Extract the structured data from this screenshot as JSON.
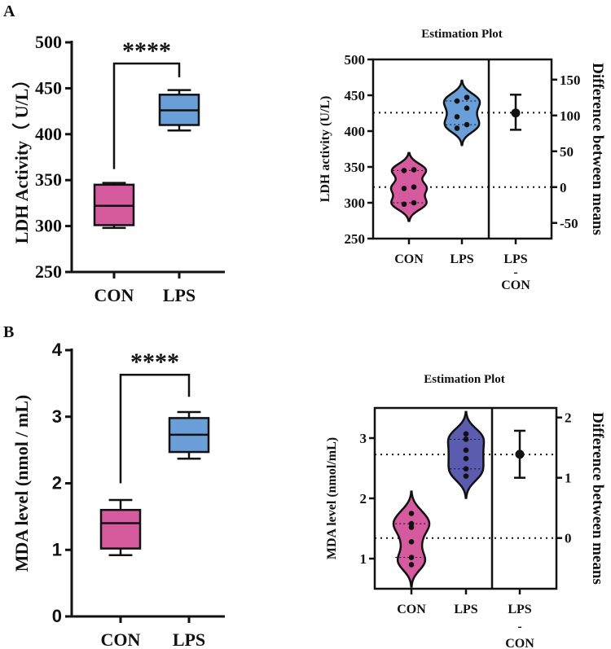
{
  "panels": [
    {
      "label": "A"
    },
    {
      "label": "B"
    }
  ],
  "chart_data": [
    {
      "type": "box",
      "panel": "A",
      "title": "",
      "ylabel": "LDH Activity（ U/L）",
      "ylim": [
        250,
        500
      ],
      "yticks": [
        "250",
        "300",
        "350",
        "400",
        "450",
        "500"
      ],
      "categories": [
        "CON",
        "LPS"
      ],
      "boxes": [
        {
          "name": "CON",
          "min": 298,
          "q1": 301,
          "median": 322,
          "q3": 345,
          "max": 347,
          "color": "#d65a9e"
        },
        {
          "name": "LPS",
          "min": 404,
          "q1": 410,
          "median": 426,
          "q3": 443,
          "max": 448,
          "color": "#6a9ed8"
        }
      ],
      "significance": {
        "label": "****",
        "bracket_top": 477,
        "left_end": 362,
        "right_end": 462
      }
    },
    {
      "type": "estimation",
      "panel": "A",
      "title": "Estimation Plot",
      "ylabel": "LDH activity (U/L)",
      "ylabel_right": "Difference between means",
      "ylim": [
        250,
        500
      ],
      "yticks": [
        "250",
        "300",
        "350",
        "400",
        "450",
        "500"
      ],
      "ylim_right_ticks": [
        "-50",
        "0",
        "50",
        "100",
        "150"
      ],
      "categories": [
        "CON",
        "LPS"
      ],
      "diff_label": [
        "LPS",
        "-",
        "CON"
      ],
      "groups": [
        {
          "name": "CON",
          "points": [
            298,
            300,
            320,
            322,
            345,
            346
          ],
          "color": "#d65a9e"
        },
        {
          "name": "LPS",
          "points": [
            404,
            409,
            420,
            432,
            442,
            447
          ],
          "color": "#6a9ed8"
        }
      ],
      "difference": {
        "mean": 103.5,
        "ci_low": 80,
        "ci_high": 129
      }
    },
    {
      "type": "box",
      "panel": "B",
      "title": "",
      "ylabel": "MDA level (nmol / mL)",
      "ylim": [
        0,
        4
      ],
      "yticks": [
        "0",
        "1",
        "2",
        "3",
        "4"
      ],
      "categories": [
        "CON",
        "LPS"
      ],
      "boxes": [
        {
          "name": "CON",
          "min": 0.92,
          "q1": 1.02,
          "median": 1.4,
          "q3": 1.6,
          "max": 1.75,
          "color": "#d65a9e"
        },
        {
          "name": "LPS",
          "min": 2.37,
          "q1": 2.47,
          "median": 2.73,
          "q3": 2.98,
          "max": 3.07,
          "color": "#6a9ed8"
        }
      ],
      "significance": {
        "label": "****",
        "bracket_top": 3.63,
        "left_end": 2.0,
        "right_end": 3.3
      }
    },
    {
      "type": "estimation",
      "panel": "B",
      "title": "Estimation Plot",
      "ylabel": "MDA level  (nmol/mL)",
      "ylabel_right": "Difference between means",
      "ylim": [
        0.5,
        3.5
      ],
      "yticks": [
        "1",
        "2",
        "3"
      ],
      "ylim_right_ticks": [
        "0",
        "1",
        "2"
      ],
      "categories": [
        "CON",
        "LPS"
      ],
      "diff_label": [
        "LPS",
        "-",
        "CON"
      ],
      "groups": [
        {
          "name": "CON",
          "points": [
            0.9,
            1.02,
            1.28,
            1.52,
            1.58,
            1.75
          ],
          "color": "#d65a9e"
        },
        {
          "name": "LPS",
          "points": [
            2.37,
            2.49,
            2.66,
            2.8,
            2.98,
            3.07
          ],
          "color": "#5b5bb0"
        }
      ],
      "difference": {
        "mean": 1.39,
        "ci_low": 1.0,
        "ci_high": 1.78
      }
    }
  ]
}
